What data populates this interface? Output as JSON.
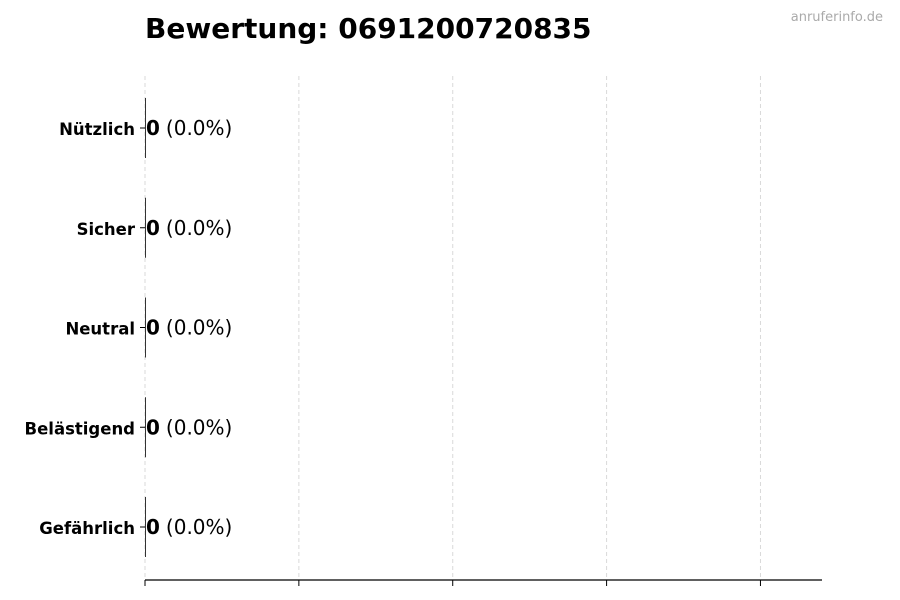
{
  "watermark": "anruferinfo.de",
  "chart_data": {
    "type": "bar",
    "orientation": "horizontal",
    "title": "Bewertung: 0691200720835",
    "categories": [
      "Nützlich",
      "Sicher",
      "Neutral",
      "Belästigend",
      "Gefährlich"
    ],
    "values": [
      0,
      0,
      0,
      0,
      0
    ],
    "value_labels": [
      {
        "count": "0",
        "percent": "(0.0%)"
      },
      {
        "count": "0",
        "percent": "(0.0%)"
      },
      {
        "count": "0",
        "percent": "(0.0%)"
      },
      {
        "count": "0",
        "percent": "(0.0%)"
      },
      {
        "count": "0",
        "percent": "(0.0%)"
      }
    ],
    "xlabel": "",
    "ylabel": "",
    "xticks": [
      0,
      1,
      2,
      3,
      4
    ],
    "xtick_labels_shown": false,
    "xlim": [
      0,
      4.4
    ],
    "grid": "vertical dashed",
    "grid_color": "#d9d9d9",
    "bar_color": "#333333",
    "legend": "none"
  }
}
